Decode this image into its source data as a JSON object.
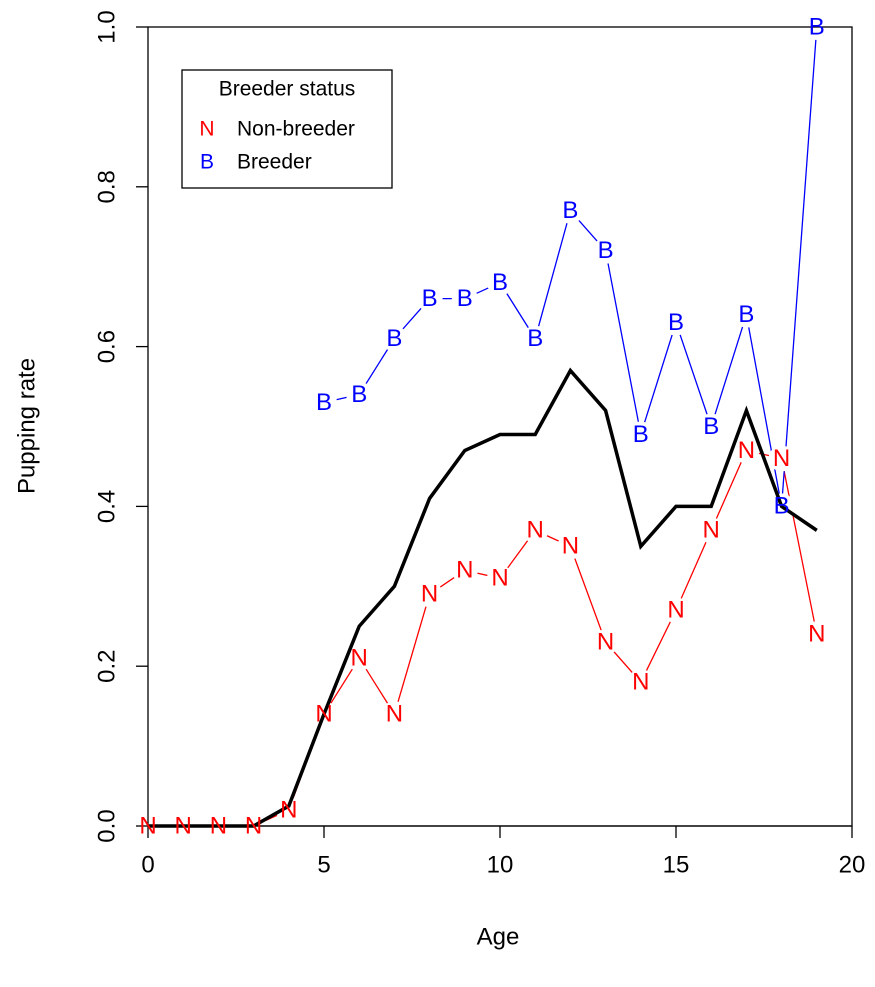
{
  "chart_data": {
    "type": "line",
    "x_label": "Age",
    "y_label": "Pupping rate",
    "x": [
      0,
      1,
      2,
      3,
      4,
      5,
      6,
      7,
      8,
      9,
      10,
      11,
      12,
      13,
      14,
      15,
      16,
      17,
      18,
      19
    ],
    "series": [
      {
        "name": "Non-breeder",
        "marker": "N",
        "color": "#ff0000",
        "line_width": 1.3,
        "values": [
          0,
          0,
          0,
          0,
          0.02,
          0.14,
          0.21,
          0.14,
          0.29,
          0.32,
          0.31,
          0.37,
          0.35,
          0.23,
          0.18,
          0.27,
          0.37,
          0.47,
          0.46,
          0.24
        ]
      },
      {
        "name": "Breeder",
        "marker": "B",
        "color": "#0000ff",
        "line_width": 1.3,
        "values": [
          null,
          null,
          null,
          null,
          null,
          0.53,
          0.54,
          0.61,
          0.66,
          0.66,
          0.68,
          0.61,
          0.77,
          0.72,
          0.49,
          0.63,
          0.5,
          0.64,
          0.4,
          1.0
        ]
      },
      {
        "color": "#000000",
        "line_width": 3.5,
        "values": [
          0,
          0,
          0,
          0,
          0.025,
          0.14,
          0.25,
          0.3,
          0.41,
          0.47,
          0.49,
          0.49,
          0.57,
          0.52,
          0.35,
          0.4,
          0.4,
          0.52,
          0.4,
          0.37
        ]
      }
    ],
    "legend_title": "Breeder status",
    "legend_position": "top-left",
    "xlim": [
      0,
      20
    ],
    "xticks": [
      0,
      5,
      10,
      15,
      20
    ],
    "ylim": [
      0,
      1
    ],
    "yticks": [
      {
        "value": 0,
        "label": "0.0"
      },
      0.2,
      0.4,
      0.6,
      0.8,
      {
        "value": 1,
        "label": "1.0"
      }
    ]
  }
}
